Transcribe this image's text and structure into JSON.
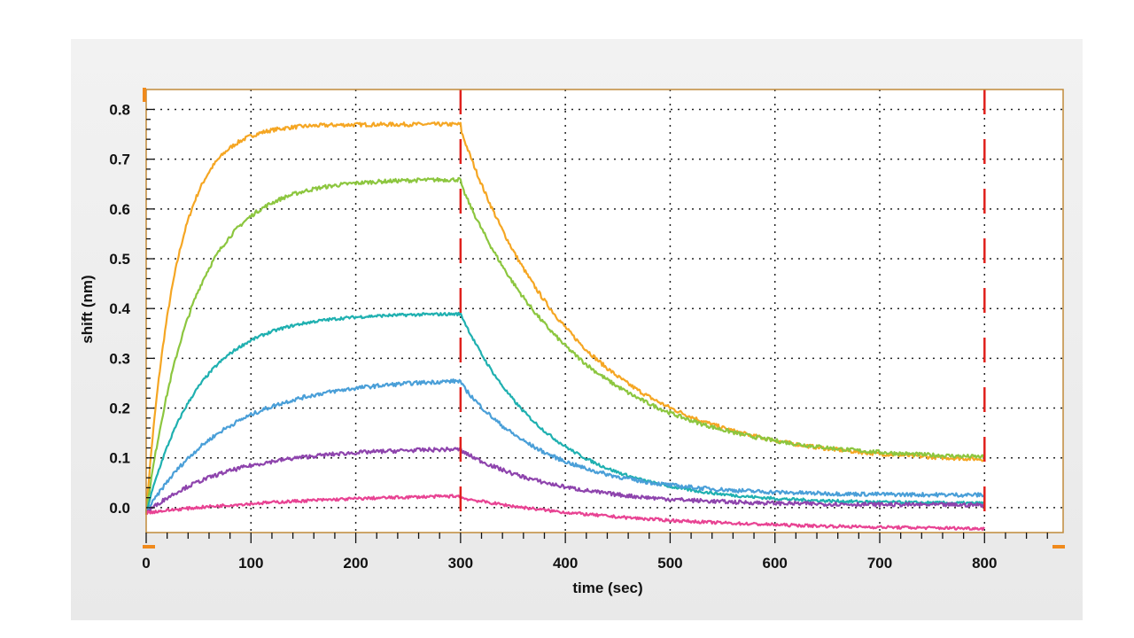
{
  "chart_data": {
    "type": "line",
    "title": "",
    "xlabel": "time (sec)",
    "ylabel": "shift (nm)",
    "xlim": [
      0,
      875
    ],
    "ylim": [
      -0.05,
      0.84
    ],
    "x_ticks": [
      0,
      100,
      200,
      300,
      400,
      500,
      600,
      700,
      800
    ],
    "y_ticks": [
      0.0,
      0.1,
      0.2,
      0.3,
      0.4,
      0.5,
      0.6,
      0.7,
      0.8
    ],
    "y_tick_labels": [
      "0.0",
      "0.1",
      "0.2",
      "0.3",
      "0.4",
      "0.5",
      "0.6",
      "0.7",
      "0.8"
    ],
    "grid": true,
    "markers": [
      300,
      800
    ],
    "series": [
      {
        "color": "#f5a623",
        "baseline": -0.01,
        "plateau": 0.77,
        "k_on": 0.035,
        "end_assoc": 0.76,
        "floor": 0.09,
        "k_off": 0.009,
        "noise": 0.004
      },
      {
        "color": "#8cc63f",
        "baseline": -0.01,
        "plateau": 0.66,
        "k_on": 0.022,
        "end_assoc": 0.65,
        "floor": 0.095,
        "k_off": 0.0088,
        "noise": 0.004
      },
      {
        "color": "#1fb0b0",
        "baseline": -0.01,
        "plateau": 0.39,
        "k_on": 0.02,
        "end_assoc": 0.39,
        "floor": 0.008,
        "k_off": 0.012,
        "noise": 0.003
      },
      {
        "color": "#4a9fd8",
        "baseline": -0.01,
        "plateau": 0.26,
        "k_on": 0.013,
        "end_assoc": 0.25,
        "floor": 0.025,
        "k_off": 0.012,
        "noise": 0.004
      },
      {
        "color": "#8e44ad",
        "baseline": -0.01,
        "plateau": 0.12,
        "k_on": 0.013,
        "end_assoc": 0.115,
        "floor": 0.005,
        "k_off": 0.011,
        "noise": 0.004
      },
      {
        "color": "#e84393",
        "baseline": -0.01,
        "plateau": 0.03,
        "k_on": 0.006,
        "end_assoc": 0.02,
        "floor": -0.045,
        "k_off": 0.006,
        "noise": 0.003
      }
    ]
  }
}
